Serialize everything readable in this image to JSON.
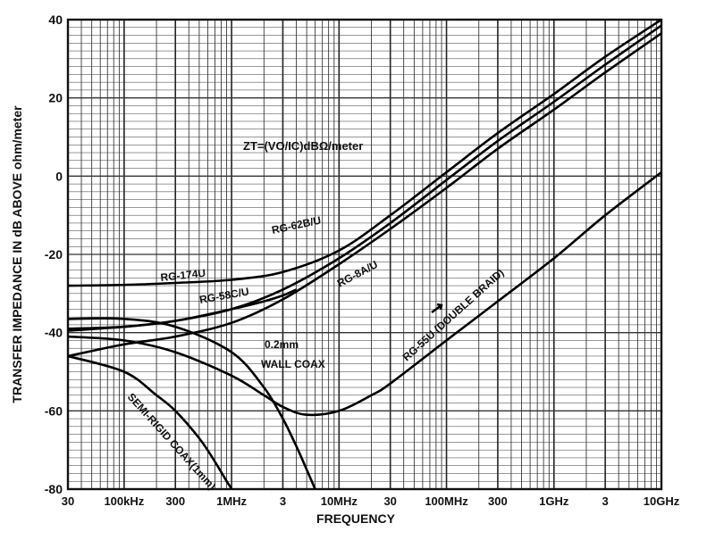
{
  "chart_data": {
    "type": "line",
    "title": "",
    "xlabel": "FREQUENCY",
    "ylabel": "TRANSFER IMPEDANCE IN dB ABOVE ohm/meter",
    "x_scale": "log",
    "xlim": [
      "30 Hz",
      "10 GHz"
    ],
    "ylim": [
      -80,
      40
    ],
    "x_tick_labels": [
      "30",
      "100kHz",
      "300",
      "1MHz",
      "3",
      "10MHz",
      "30",
      "100MHz",
      "300",
      "1GHz",
      "3",
      "10GHz"
    ],
    "y_tick_labels": [
      "40",
      "20",
      "0",
      "-20",
      "-40",
      "-60",
      "-80"
    ],
    "grid": true,
    "legend": "none",
    "formula_annotation": "ZT=(VO/IC)dBΩ/meter",
    "series": [
      {
        "name": "RG-174U",
        "x_hz": [
          30000,
          100000,
          300000,
          1000000,
          3000000,
          10000000,
          30000000,
          100000000,
          300000000,
          1000000000,
          3000000000,
          10000000000
        ],
        "values": [
          -28,
          -27.8,
          -27.3,
          -26.5,
          -24.5,
          -19,
          -10,
          1,
          11,
          21,
          30.5,
          40
        ]
      },
      {
        "name": "RG-58C/U",
        "x_hz": [
          30000,
          100000,
          300000,
          1000000,
          2000000,
          3000000,
          4000000
        ],
        "values": [
          -39.5,
          -38.5,
          -37,
          -34,
          -32,
          -30.5,
          -29
        ]
      },
      {
        "name": "RG-62B/U",
        "x_hz": [
          30000,
          100000,
          300000,
          1000000,
          3000000,
          10000000,
          30000000,
          100000000,
          300000000,
          1000000000,
          3000000000,
          10000000000
        ],
        "values": [
          -39,
          -38.5,
          -37,
          -34,
          -29,
          -21,
          -12,
          -1,
          9,
          19,
          28.5,
          38.5
        ]
      },
      {
        "name": "RG-8A/U",
        "x_hz": [
          30000,
          100000,
          300000,
          1000000,
          3000000,
          10000000,
          30000000,
          100000000,
          300000000,
          1000000000,
          3000000000,
          10000000000
        ],
        "values": [
          -46,
          -43,
          -41,
          -37.5,
          -31.5,
          -22.5,
          -13.5,
          -3,
          7,
          17,
          26.5,
          36.5
        ]
      },
      {
        "name": "RG-55U (DOUBLE BRAID)",
        "x_hz": [
          30000,
          100000,
          300000,
          1000000,
          2000000,
          3000000,
          5000000,
          10000000,
          20000000,
          30000000,
          100000000,
          300000000,
          1000000000,
          3000000000,
          10000000000
        ],
        "values": [
          -41,
          -42,
          -45,
          -51,
          -56,
          -59,
          -61,
          -60,
          -56,
          -53,
          -42,
          -32,
          -21,
          -10,
          1
        ]
      },
      {
        "name": "0.2mm WALL COAX",
        "x_hz": [
          30000,
          100000,
          300000,
          1000000,
          2000000,
          3000000,
          4000000,
          5000000,
          6000000,
          7000000
        ],
        "values": [
          -36.5,
          -36.5,
          -38.5,
          -45,
          -54,
          -62,
          -69,
          -75,
          -80,
          -84
        ]
      },
      {
        "name": "SEMI-RIGID COAX(1mm)",
        "x_hz": [
          30000,
          100000,
          200000,
          300000,
          500000,
          700000,
          900000,
          1000000,
          1100000
        ],
        "values": [
          -46,
          -50,
          -56,
          -60,
          -67,
          -73,
          -78,
          -80,
          -83
        ]
      }
    ]
  }
}
